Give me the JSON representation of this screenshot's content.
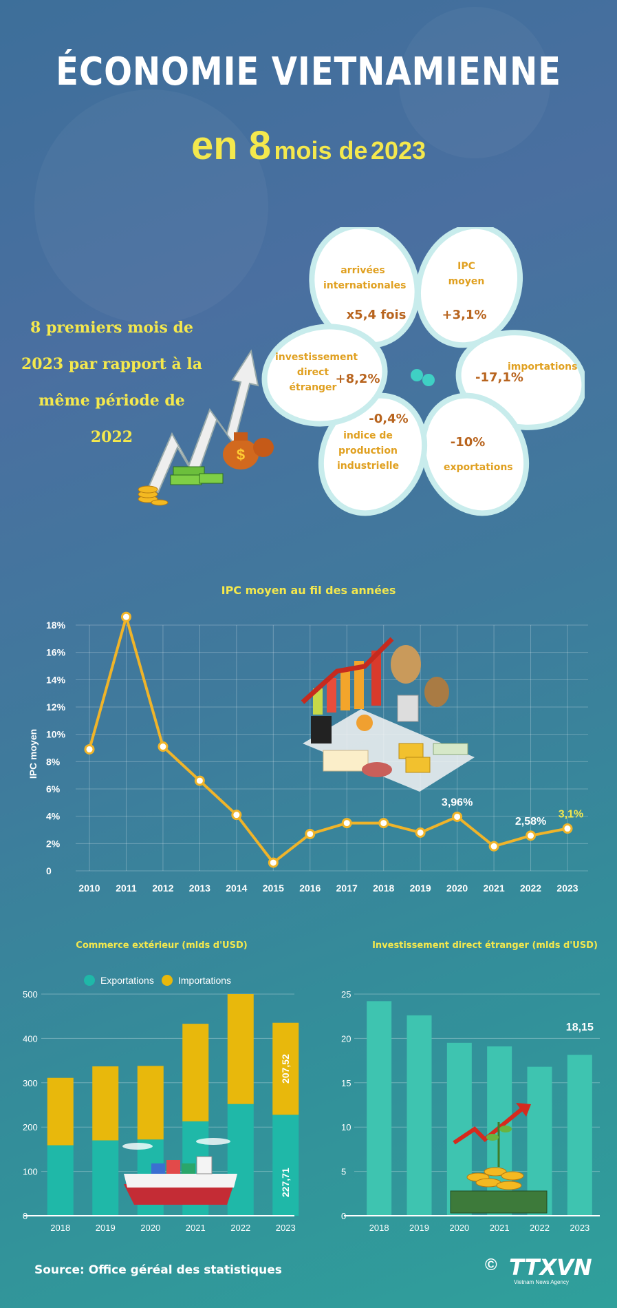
{
  "header": {
    "title": "ÉCONOMIE VIETNAMIENNE",
    "subtitle_number": "en 8",
    "subtitle_text": "mois de",
    "subtitle_year": "2023"
  },
  "intro": {
    "line1": "8 premiers mois de",
    "line2": "2023 par rapport à la",
    "line3": "même période de 2022"
  },
  "indicators": [
    {
      "label": "arrivées internationales",
      "value": "x5,4 fois"
    },
    {
      "label": "IPC moyen",
      "value": "+3,1%"
    },
    {
      "label": "importations",
      "value": "-17,1%"
    },
    {
      "label": "exportations",
      "value": "-10%"
    },
    {
      "label": "indice de production industrielle",
      "value": "-0,4%"
    },
    {
      "label": "investissement direct étranger",
      "value": "+8,2%"
    }
  ],
  "chart_data": [
    {
      "type": "line",
      "title": "IPC moyen au fil des années",
      "ylabel": "IPC moyen",
      "xlabel": "",
      "x": [
        "2010",
        "2011",
        "2012",
        "2013",
        "2014",
        "2015",
        "2016",
        "2017",
        "2018",
        "2019",
        "2020",
        "2021",
        "2022",
        "2023"
      ],
      "y": [
        8.9,
        18.6,
        9.1,
        6.6,
        4.1,
        0.6,
        2.7,
        3.5,
        3.5,
        2.8,
        3.96,
        1.8,
        2.58,
        3.1
      ],
      "ylim": [
        0,
        18
      ],
      "yticks": [
        "0",
        "2%",
        "4%",
        "6%",
        "8%",
        "10%",
        "12%",
        "14%",
        "16%",
        "18%"
      ],
      "annotations": [
        "3,96%",
        "2,58%",
        "3,1%"
      ],
      "line_color": "#f0b429",
      "grid": true
    },
    {
      "type": "bar",
      "title": "Commerce extérieur (mlds d'USD)",
      "stacked": true,
      "categories": [
        "2018",
        "2019",
        "2020",
        "2021",
        "2022",
        "2023"
      ],
      "series": [
        {
          "name": "Exportations",
          "color": "#1fb8a8",
          "values": [
            159,
            170,
            172,
            213,
            252,
            227.71
          ]
        },
        {
          "name": "Importations",
          "color": "#e8b80c",
          "values": [
            152,
            167,
            166,
            220,
            248,
            207.52
          ]
        }
      ],
      "data_labels": [
        "207,52",
        "227,71"
      ],
      "ylim": [
        0,
        500
      ],
      "yticks": [
        "0",
        "100",
        "200",
        "300",
        "400",
        "500"
      ],
      "legend": "top"
    },
    {
      "type": "bar",
      "title": "Investissement direct étranger (mlds d'USD)",
      "categories": [
        "2018",
        "2019",
        "2020",
        "2021",
        "2022",
        "2023"
      ],
      "values": [
        24.2,
        22.6,
        19.5,
        19.1,
        16.8,
        18.15
      ],
      "data_labels": [
        "18,15"
      ],
      "ylim": [
        0,
        25
      ],
      "yticks": [
        "0",
        "5",
        "10",
        "15",
        "20",
        "25"
      ],
      "bar_color": "#3ec4b0"
    }
  ],
  "footer": {
    "source": "Source: Office géréal des statistiques",
    "copyright": "©",
    "logo": "TTXVN",
    "logo_sub": "Vietnam News Agency"
  }
}
